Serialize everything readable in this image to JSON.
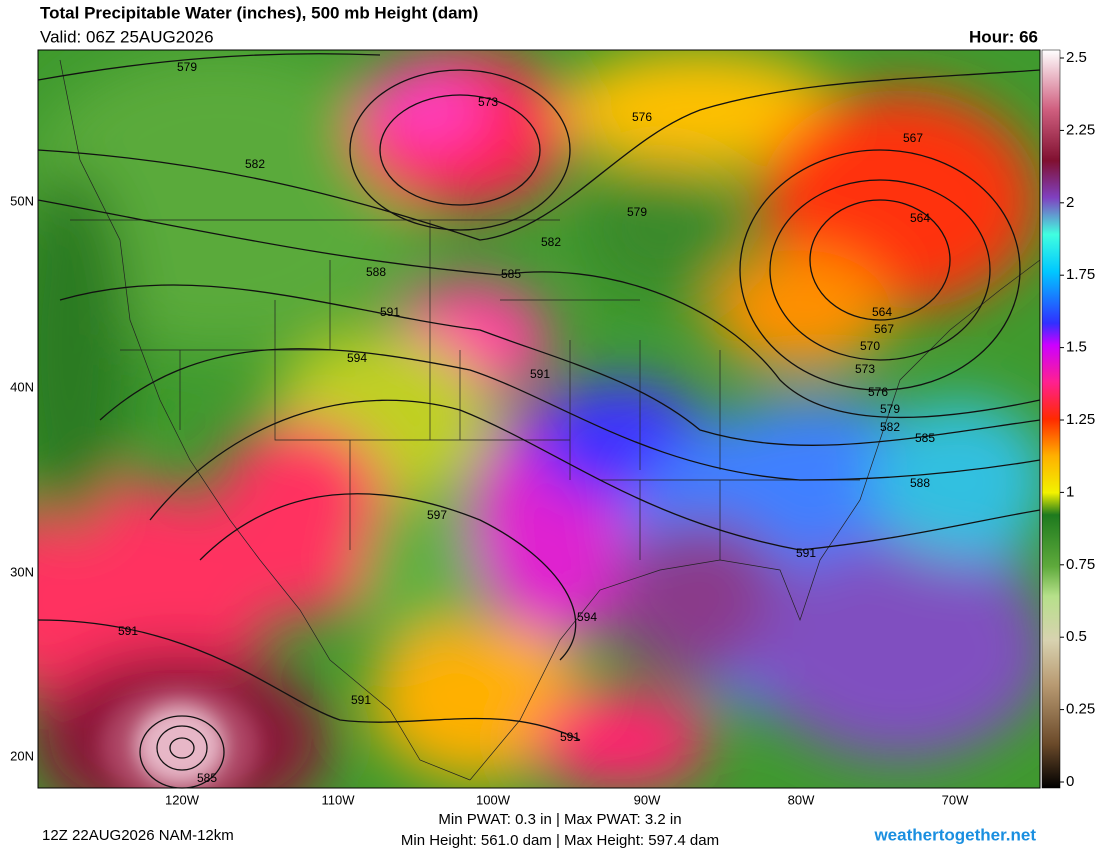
{
  "header": {
    "title": "Total Precipitable Water (inches), 500 mb Height (dam)",
    "valid": "Valid: 06Z 25AUG2026",
    "hour": "Hour: 66"
  },
  "map": {
    "contour_labels": [
      "579",
      "573",
      "576",
      "567",
      "582",
      "579",
      "564",
      "582",
      "585",
      "588",
      "591",
      "564",
      "567",
      "570",
      "594",
      "591",
      "573",
      "576",
      "579",
      "582",
      "585",
      "588",
      "597",
      "591",
      "594",
      "591",
      "591",
      "591",
      "585"
    ],
    "lat_labels": [
      "50N",
      "40N",
      "30N",
      "20N"
    ],
    "lon_labels": [
      "120W",
      "110W",
      "100W",
      "90W",
      "80W",
      "70W"
    ]
  },
  "colorbar": {
    "lim": [
      0,
      2.5
    ],
    "ticks": [
      2.5,
      2.25,
      2,
      1.75,
      1.5,
      1.25,
      1,
      0.75,
      0.5,
      0.25,
      0
    ]
  },
  "footer": {
    "run": "12Z 22AUG2026 NAM-12km",
    "pwat": "Min PWAT:   0.3 in | Max PWAT:   3.2 in",
    "height": "Min Height: 561.0 dam | Max Height: 597.4 dam",
    "credit": "weathertogether.net"
  }
}
